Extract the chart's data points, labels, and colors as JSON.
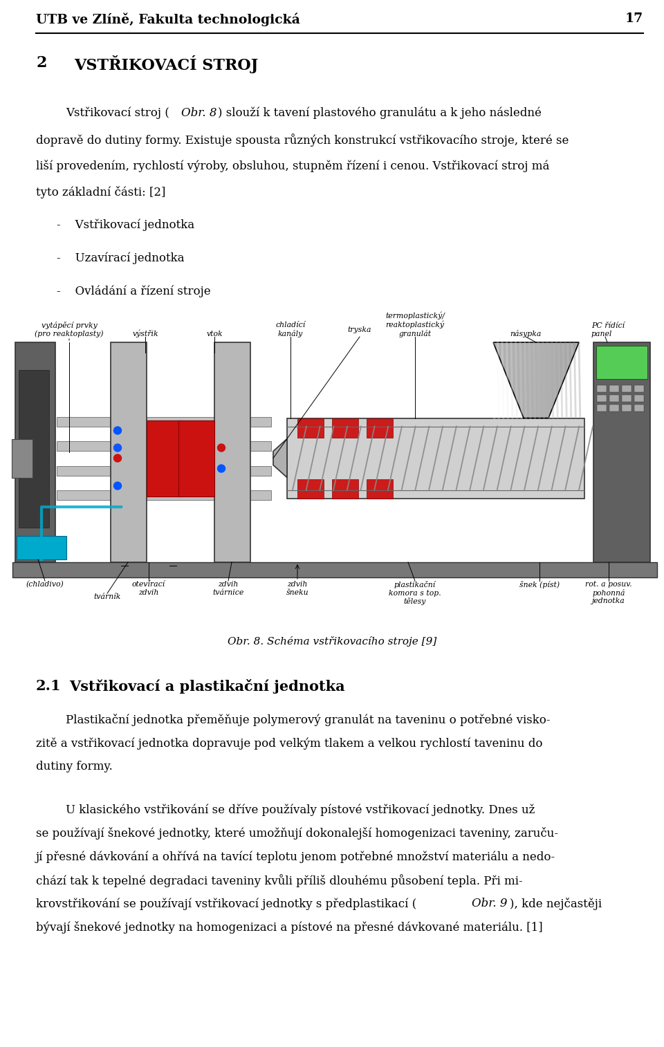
{
  "page_width": 9.6,
  "page_height": 15.14,
  "dpi": 100,
  "background_color": "#ffffff",
  "header_text": "UTB ve Zlíně, Fakulta technologická",
  "header_page_num": "17",
  "section_num": "2",
  "section_title": "VSTŘIKOVACÍ STROJ",
  "para1_line1": "Vstřikovací stroj (",
  "para1_obr": "Obr. 8",
  "para1_line1b": ") slouží k tavení plastového granulátu a k jeho následné",
  "para1_line2": "dopravě do dutiny formy. Existuje spousta různých konstrukcí vstřikovacího stroje, které se",
  "para1_line3": "liší provedením, rychlostí výroby, obsluhou, stupněm řízení i cenou. Vstřikovací stroj má",
  "para1_line4": "tyto základní části: [2]",
  "bullet1": "-    Vstřikovací jednotka",
  "bullet2": "-    Uzavírací jednotka",
  "bullet3": "-    Ovládání a řízení stroje",
  "fig_caption": "Obr. 8. Schéma vstřikovacího stroje [9]",
  "subsection_num": "2.1",
  "subsection_title": "Vstřikovací a plastikační jednotka",
  "p2_l1": "Plastikační jednotka přeměňuje polymerový granulát na taveninu o potřebné visko-",
  "p2_l2": "zitě a vstřikovací jednotka dopravuje pod velkým tlakem a velkou rychlostí taveninu do",
  "p2_l3": "dutiny formy.",
  "p3_l1": "U klasického vstřikování se dříve používaly pístové vstřikovací jednotky. Dnes už",
  "p3_l2": "se používají šnekové jednotky, které umožňují dokonalejší homogenizaci taveniny, zaruču-",
  "p3_l3": "jí přesné dávkování a ohřívá na tavící teplotu jenom potřebné množství materiálu a nedo-",
  "p3_l4": "chází tak k tepelné degradaci taveniny kvůli příliš dlouhému působení tepla. Při mi-",
  "p3_l5": "krovstřikování se používají vstřikovací jednotky s předplastikací (",
  "p3_l5b": "Obr. 9",
  "p3_l5c": "), kde nejčastěji",
  "p3_l6": "bývají šnekové jednotky na homogenizaci a pístové na přesné dávkované materiálu. [1]"
}
